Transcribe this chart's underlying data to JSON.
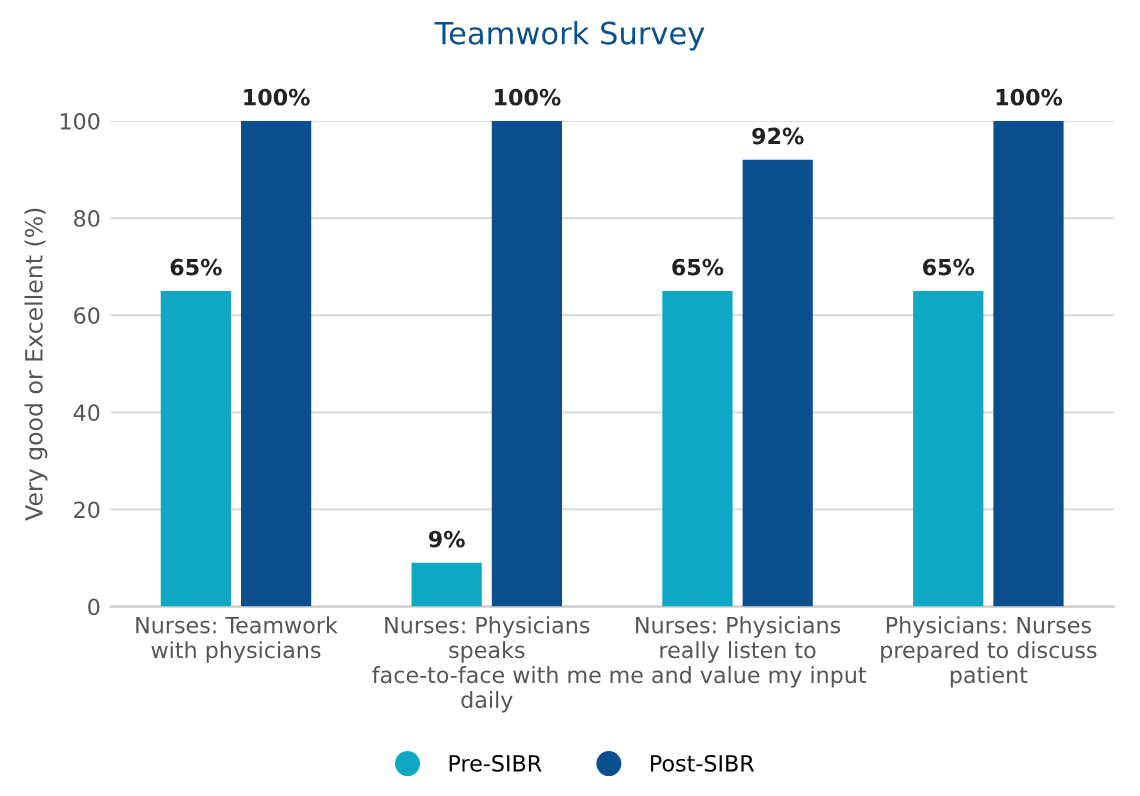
{
  "chart_data": {
    "type": "bar",
    "title": "Teamwork Survey",
    "ylabel": "Very good or Excellent (%)",
    "categories": [
      "Nurses: Teamwork\nwith physicians",
      "Nurses: Physicians\nspeaks\nface-to-face with me\ndaily",
      "Nurses: Physicians\nreally listen to\nme and value my input",
      "Physicians: Nurses\nprepared to discuss\npatient"
    ],
    "series": [
      {
        "name": "Pre-SIBR",
        "color": "#0fa8c4",
        "values": [
          65,
          9,
          65,
          65
        ],
        "value_labels": [
          "65%",
          "9%",
          "65%",
          "65%"
        ]
      },
      {
        "name": "Post-SIBR",
        "color": "#0b4f8e",
        "values": [
          100,
          100,
          92,
          100
        ],
        "value_labels": [
          "100%",
          "100%",
          "92%",
          "100%"
        ]
      }
    ],
    "ylim": [
      0,
      100
    ],
    "yticks": [
      0,
      20,
      40,
      60,
      80,
      100
    ],
    "grid": "y",
    "legend": "bottom"
  }
}
